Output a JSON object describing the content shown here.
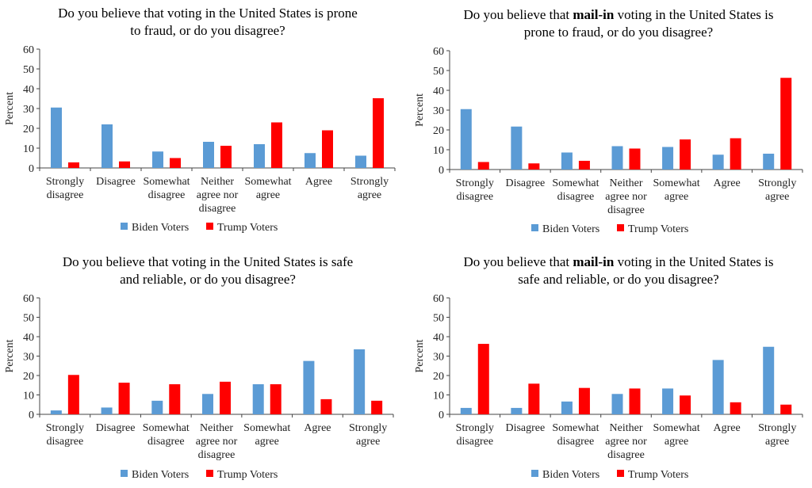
{
  "chart_data": [
    {
      "type": "bar",
      "title_lines": [
        [
          {
            "text": "Do you believe that voting in the United States is prone",
            "bold": false
          }
        ],
        [
          {
            "text": "to fraud, or do you disagree?",
            "bold": false
          }
        ]
      ],
      "ylabel": "Percent",
      "ylim": [
        0,
        60
      ],
      "yticks": [
        0,
        10,
        20,
        30,
        40,
        50,
        60
      ],
      "categories": [
        [
          "Strongly",
          "disagree"
        ],
        [
          "Disagree"
        ],
        [
          "Somewhat",
          "disagree"
        ],
        [
          "Neither",
          "agree nor",
          "disagree"
        ],
        [
          "Somewhat",
          "agree"
        ],
        [
          "Agree"
        ],
        [
          "Strongly",
          "agree"
        ]
      ],
      "series": [
        {
          "name": "Biden Voters",
          "color": "#5b9bd5",
          "values": [
            30.5,
            22,
            8.3,
            13.2,
            12,
            7.5,
            6.2
          ]
        },
        {
          "name": "Trump Voters",
          "color": "#ff0000",
          "values": [
            2.8,
            3.3,
            5,
            11.2,
            23,
            19,
            35.2
          ]
        }
      ],
      "legend": "bottom",
      "grid": false
    },
    {
      "type": "bar",
      "title_lines": [
        [
          {
            "text": "Do you believe that ",
            "bold": false
          },
          {
            "text": "mail-in",
            "bold": true
          },
          {
            "text": " voting in the United States is",
            "bold": false
          }
        ],
        [
          {
            "text": "prone to fraud, or do you disagree?",
            "bold": false
          }
        ]
      ],
      "ylabel": "Percent",
      "ylim": [
        0,
        60
      ],
      "yticks": [
        0,
        10,
        20,
        30,
        40,
        50,
        60
      ],
      "categories": [
        [
          "Strongly",
          "disagree"
        ],
        [
          "Disagree"
        ],
        [
          "Somewhat",
          "disagree"
        ],
        [
          "Neither",
          "agree nor",
          "disagree"
        ],
        [
          "Somewhat",
          "agree"
        ],
        [
          "Agree"
        ],
        [
          "Strongly",
          "agree"
        ]
      ],
      "series": [
        {
          "name": "Biden Voters",
          "color": "#5b9bd5",
          "values": [
            30.5,
            21.7,
            8.6,
            11.8,
            11.4,
            7.5,
            8
          ]
        },
        {
          "name": "Trump Voters",
          "color": "#ff0000",
          "values": [
            3.8,
            3.1,
            4.4,
            10.6,
            15.2,
            15.8,
            46.3
          ]
        }
      ],
      "legend": "bottom",
      "grid": false
    },
    {
      "type": "bar",
      "title_lines": [
        [
          {
            "text": "Do you believe that voting in the United States is safe",
            "bold": false
          }
        ],
        [
          {
            "text": "and reliable, or do you disagree?",
            "bold": false
          }
        ]
      ],
      "ylabel": "Percent",
      "ylim": [
        0,
        60
      ],
      "yticks": [
        0,
        10,
        20,
        30,
        40,
        50,
        60
      ],
      "categories": [
        [
          "Strongly",
          "disagree"
        ],
        [
          "Disagree"
        ],
        [
          "Somewhat",
          "disagree"
        ],
        [
          "Neither",
          "agree nor",
          "disagree"
        ],
        [
          "Somewhat",
          "agree"
        ],
        [
          "Agree"
        ],
        [
          "Strongly",
          "agree"
        ]
      ],
      "series": [
        {
          "name": "Biden Voters",
          "color": "#5b9bd5",
          "values": [
            2,
            3.5,
            7,
            10.5,
            15.5,
            27.5,
            33.5
          ]
        },
        {
          "name": "Trump Voters",
          "color": "#ff0000",
          "values": [
            20.3,
            16.3,
            15.5,
            16.8,
            15.5,
            7.8,
            7
          ]
        }
      ],
      "legend": "bottom",
      "grid": false
    },
    {
      "type": "bar",
      "title_lines": [
        [
          {
            "text": "Do you believe that ",
            "bold": false
          },
          {
            "text": "mail-in",
            "bold": true
          },
          {
            "text": " voting in the United States is",
            "bold": false
          }
        ],
        [
          {
            "text": "safe and reliable, or do you disagree?",
            "bold": false
          }
        ]
      ],
      "ylabel": "Percent",
      "ylim": [
        0,
        60
      ],
      "yticks": [
        0,
        10,
        20,
        30,
        40,
        50,
        60
      ],
      "categories": [
        [
          "Strongly",
          "disagree"
        ],
        [
          "Disagree"
        ],
        [
          "Somewhat",
          "disagree"
        ],
        [
          "Neither",
          "agree nor",
          "disagree"
        ],
        [
          "Somewhat",
          "agree"
        ],
        [
          "Agree"
        ],
        [
          "Strongly",
          "agree"
        ]
      ],
      "series": [
        {
          "name": "Biden Voters",
          "color": "#5b9bd5",
          "values": [
            3.3,
            3.3,
            6.6,
            10.5,
            13.3,
            28,
            34.8
          ]
        },
        {
          "name": "Trump Voters",
          "color": "#ff0000",
          "values": [
            36.3,
            15.8,
            13.6,
            13.3,
            9.7,
            6.2,
            5
          ]
        }
      ],
      "legend": "bottom",
      "grid": false
    }
  ]
}
